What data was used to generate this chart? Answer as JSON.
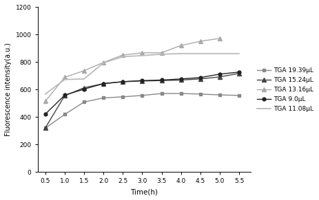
{
  "series": [
    {
      "label": "TGA 19.39μL",
      "color": "#888888",
      "marker": "s",
      "markersize": 3.5,
      "linewidth": 1.0,
      "x": [
        0.5,
        1.0,
        1.5,
        2.0,
        2.5,
        3.0,
        3.5,
        4.0,
        4.5,
        5.0,
        5.5
      ],
      "y": [
        320,
        420,
        510,
        540,
        548,
        558,
        572,
        572,
        568,
        562,
        558
      ]
    },
    {
      "label": "TGA 15.24μL",
      "color": "#444444",
      "marker": "^",
      "markersize": 4,
      "linewidth": 1.0,
      "x": [
        0.5,
        1.0,
        1.5,
        2.0,
        2.5,
        3.0,
        3.5,
        4.0,
        4.5,
        5.0,
        5.5
      ],
      "y": [
        322,
        556,
        614,
        644,
        658,
        663,
        666,
        670,
        678,
        693,
        718
      ]
    },
    {
      "label": "TGA 13.16μL",
      "color": "#aaaaaa",
      "marker": "^",
      "markersize": 4.5,
      "linewidth": 1.0,
      "x": [
        0.5,
        1.0,
        1.5,
        2.0,
        2.5,
        3.0,
        3.5,
        4.0,
        4.5,
        5.0
      ],
      "y": [
        515,
        690,
        738,
        798,
        852,
        868,
        868,
        922,
        952,
        973
      ]
    },
    {
      "label": "TGA 9.0μL",
      "color": "#222222",
      "marker": "o",
      "markersize": 3.5,
      "linewidth": 1.0,
      "x": [
        0.5,
        1.0,
        1.5,
        2.0,
        2.5,
        3.0,
        3.5,
        4.0,
        4.5,
        5.0,
        5.5
      ],
      "y": [
        422,
        560,
        604,
        644,
        658,
        666,
        670,
        678,
        688,
        713,
        728
      ]
    },
    {
      "label": "TGA 11.08μL",
      "color": "#bbbbbb",
      "marker": "None",
      "markersize": 0,
      "linewidth": 1.3,
      "x": [
        0.5,
        1.0,
        1.5,
        2.0,
        2.5,
        3.0,
        3.5,
        4.0,
        4.5,
        5.0,
        5.5
      ],
      "y": [
        568,
        674,
        678,
        795,
        840,
        848,
        858,
        862,
        862,
        862,
        862
      ]
    }
  ],
  "xlabel": "Time(h)",
  "ylabel": "Fluorescence intensity(a.u.)",
  "xlim": [
    0.3,
    5.8
  ],
  "ylim": [
    0,
    1200
  ],
  "xticks": [
    0.5,
    1.0,
    1.5,
    2.0,
    2.5,
    3.0,
    3.5,
    4.0,
    4.5,
    5.0,
    5.5
  ],
  "xticklabels": [
    "0.5",
    "1.0",
    "1.5",
    "2.0",
    "2.5",
    "3.0",
    "3.5",
    "4.0",
    "4.5",
    "5.0",
    "5.5"
  ],
  "yticks": [
    0,
    200,
    400,
    600,
    800,
    1000,
    1200
  ],
  "background_color": "#ffffff",
  "legend_fontsize": 6.5,
  "axis_fontsize": 7.5,
  "tick_fontsize": 6.5,
  "ylabel_fontsize": 7,
  "figsize": [
    4.64,
    2.91
  ],
  "dpi": 100
}
